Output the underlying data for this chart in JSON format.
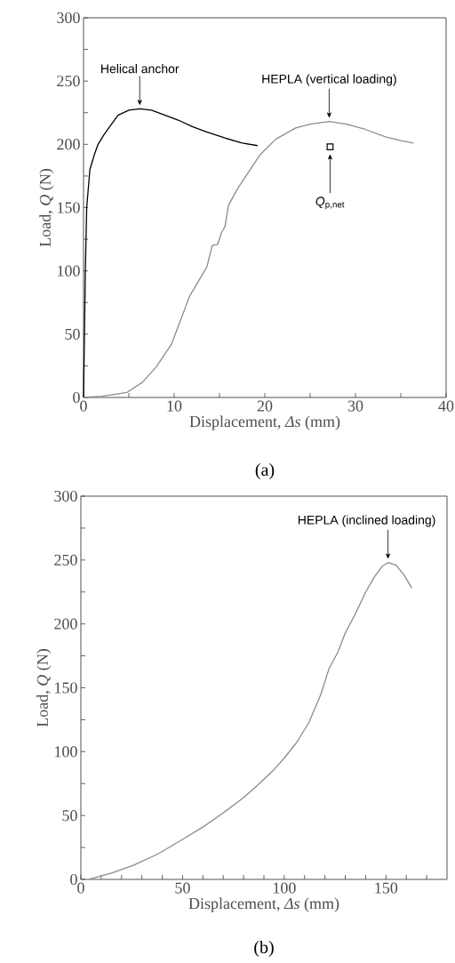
{
  "chart_data": [
    {
      "type": "line",
      "xlabel": "Displacement, *Δs* (mm)",
      "ylabel": "Load, *Q* (N)",
      "xlim": [
        0,
        40
      ],
      "ylim": [
        0,
        300
      ],
      "xticks": [
        0,
        {
          "value": 5,
          "label": null
        },
        10,
        {
          "value": 15,
          "label": null
        },
        20,
        {
          "value": 25,
          "label": null
        },
        30,
        {
          "value": 35,
          "label": null
        },
        40
      ],
      "yticks": [
        0,
        {
          "value": 25,
          "label": null
        },
        50,
        {
          "value": 75,
          "label": null
        },
        100,
        {
          "value": 125,
          "label": null
        },
        150,
        {
          "value": 175,
          "label": null
        },
        200,
        {
          "value": 225,
          "label": null
        },
        250,
        {
          "value": 275,
          "label": null
        },
        300
      ],
      "series": [
        {
          "color": "#000000",
          "x": [
            0,
            0.1,
            0.2,
            0.35,
            0.7,
            1.2,
            1.6,
            2.2,
            3,
            3.8,
            5,
            6.2,
            7.5,
            9,
            10.5,
            12,
            13.5,
            15.6,
            17.5,
            19.2
          ],
          "values": [
            0,
            50,
            100,
            150,
            180,
            192,
            200,
            207,
            215,
            223,
            227,
            228,
            227,
            223,
            219,
            214,
            210,
            205,
            201,
            199
          ]
        },
        {
          "color": "#8c8c8c",
          "x": [
            0,
            2,
            3.5,
            4.8,
            6.5,
            8,
            9.7,
            11.7,
            13.6,
            14.2,
            14.8,
            15.2,
            15.6,
            16,
            17,
            18.2,
            19.5,
            21.2,
            23.4,
            25,
            27.1,
            29,
            31,
            33.3,
            35,
            36.4
          ],
          "values": [
            0,
            1,
            2.5,
            4,
            12,
            24,
            42,
            80,
            103,
            120,
            121,
            130,
            135,
            152,
            165,
            178,
            192,
            204,
            213,
            216,
            218,
            216,
            212,
            206,
            203,
            201
          ]
        },
        {
          "type": "scatter",
          "name": "*Q*$_{p,net}$",
          "marker": "square",
          "color": "#000000",
          "x": [
            27.2
          ],
          "values": [
            198
          ]
        }
      ],
      "annotations": [
        {
          "text": "Helical anchor",
          "x": 6.2,
          "y": 228
        },
        {
          "text": "HEPLA (vertical loading)",
          "x": 27.1,
          "y": 218
        },
        "(a)"
      ]
    },
    {
      "type": "line",
      "xlabel": "Displacement, *Δs* (mm)",
      "ylabel": "Load, *Q* (N)",
      "xlim": [
        0,
        180
      ],
      "ylim": [
        0,
        300
      ],
      "xticks": [
        0,
        {
          "value": 10,
          "label": null
        },
        {
          "value": 20,
          "label": null
        },
        {
          "value": 30,
          "label": null
        },
        {
          "value": 40,
          "label": null
        },
        50,
        {
          "value": 60,
          "label": null
        },
        {
          "value": 70,
          "label": null
        },
        {
          "value": 80,
          "label": null
        },
        {
          "value": 90,
          "label": null
        },
        100,
        {
          "value": 110,
          "label": null
        },
        {
          "value": 120,
          "label": null
        },
        {
          "value": 130,
          "label": null
        },
        {
          "value": 140,
          "label": null
        },
        150,
        {
          "value": 160,
          "label": null
        },
        {
          "value": 170,
          "label": null
        }
      ],
      "yticks": [
        0,
        {
          "value": 25,
          "label": null
        },
        50,
        {
          "value": 75,
          "label": null
        },
        100,
        {
          "value": 125,
          "label": null
        },
        150,
        {
          "value": 175,
          "label": null
        },
        200,
        {
          "value": 225,
          "label": null
        },
        250,
        {
          "value": 275,
          "label": null
        },
        300
      ],
      "series": [
        {
          "color": "#8c8c8c",
          "x": [
            3.9,
            15,
            25.8,
            38,
            50.7,
            60,
            69.5,
            80,
            87,
            95,
            100,
            106,
            112,
            118,
            122,
            126.4,
            130,
            135,
            140,
            144,
            148,
            151,
            155,
            159,
            162.7
          ],
          "values": [
            0,
            5,
            11,
            20,
            32,
            41,
            51.5,
            64,
            74,
            86,
            95,
            107,
            122.5,
            145,
            165,
            178,
            193,
            208,
            225,
            236,
            245,
            248,
            246,
            238,
            228
          ]
        }
      ],
      "annotations": [
        {
          "text": "HEPLA (inclined loading)",
          "x": 151,
          "y": 248
        },
        "(b)"
      ]
    }
  ]
}
